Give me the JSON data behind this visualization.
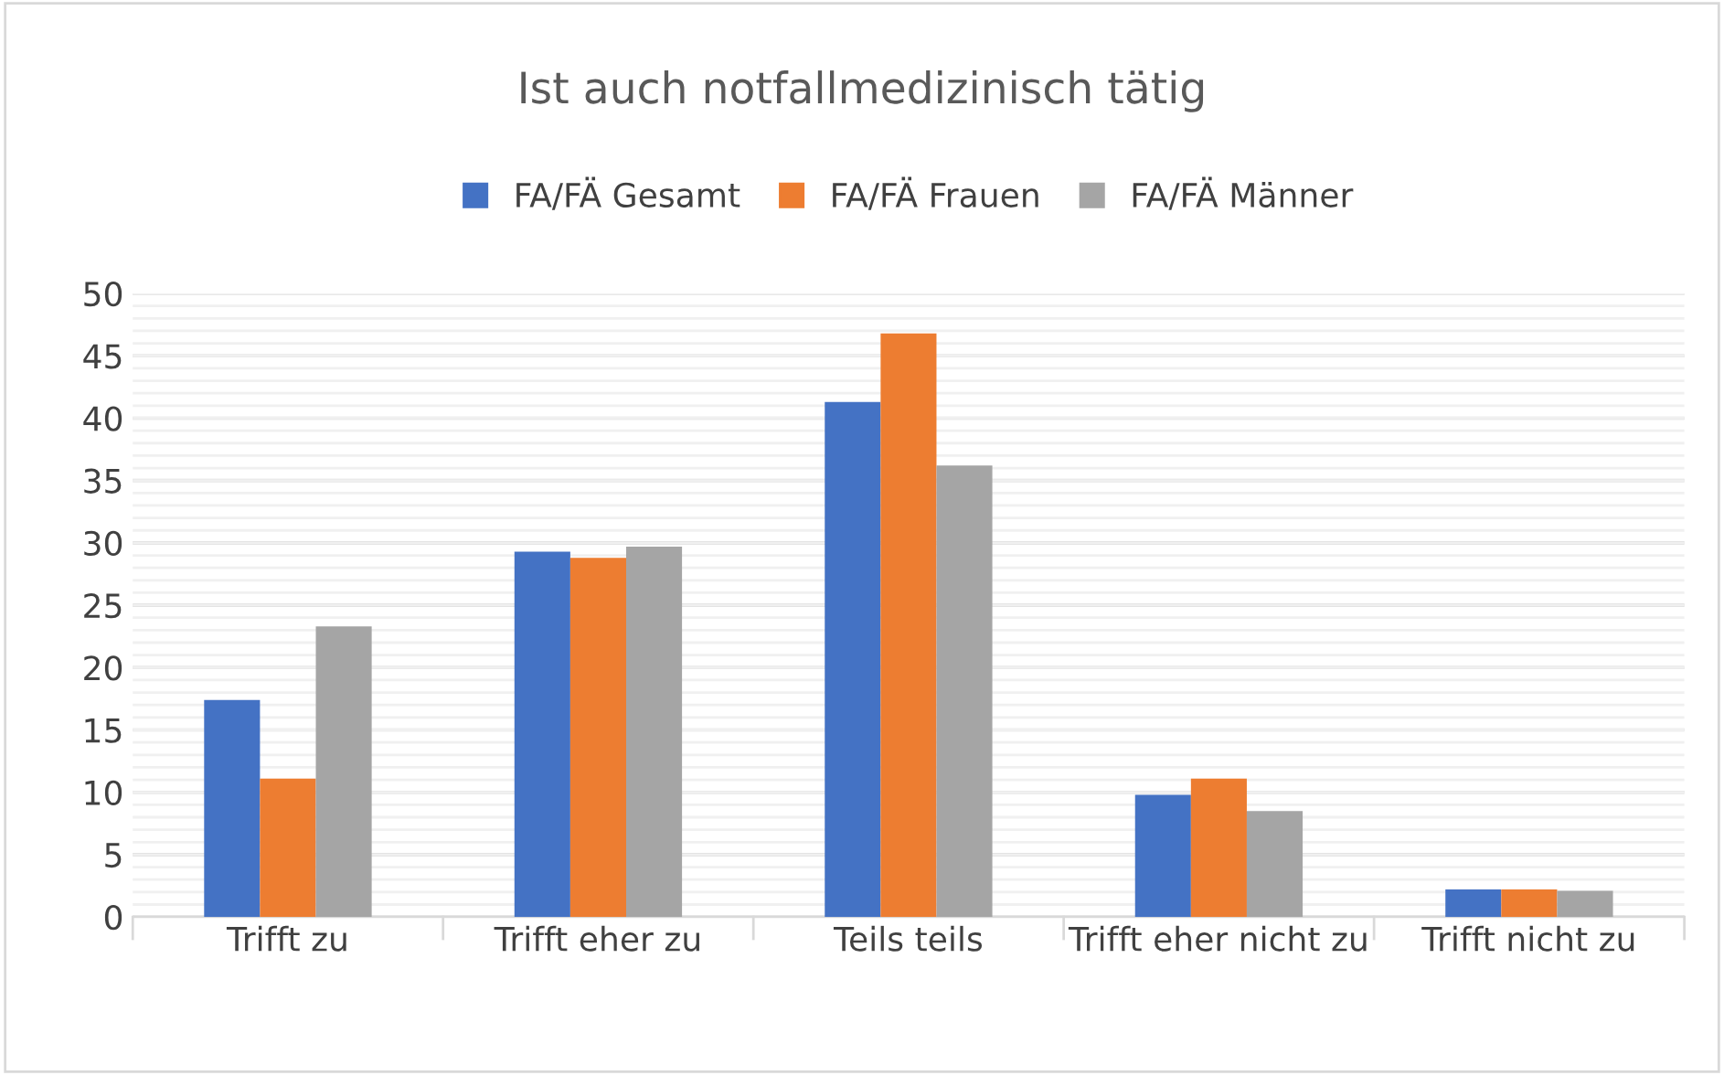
{
  "chart_data": {
    "type": "bar",
    "title": "Ist auch notfallmedizinisch tätig",
    "categories": [
      "Trifft zu",
      "Trifft eher zu",
      "Teils teils",
      "Trifft eher nicht zu",
      "Trifft nicht zu"
    ],
    "series": [
      {
        "name": "FA/FÄ Gesamt",
        "color": "#4472c4",
        "values": [
          17.4,
          29.3,
          41.3,
          9.8,
          2.2
        ]
      },
      {
        "name": "FA/FÄ Frauen",
        "color": "#ed7d31",
        "values": [
          11.1,
          28.8,
          46.8,
          11.1,
          2.2
        ]
      },
      {
        "name": "FA/FÄ Männer",
        "color": "#a5a5a5",
        "values": [
          23.3,
          29.7,
          36.2,
          8.5,
          2.1
        ]
      }
    ],
    "ylim": [
      0,
      50
    ],
    "yticks": [
      0,
      5,
      10,
      15,
      20,
      25,
      30,
      35,
      40,
      45,
      50
    ],
    "grid": "y",
    "legend": "top"
  }
}
